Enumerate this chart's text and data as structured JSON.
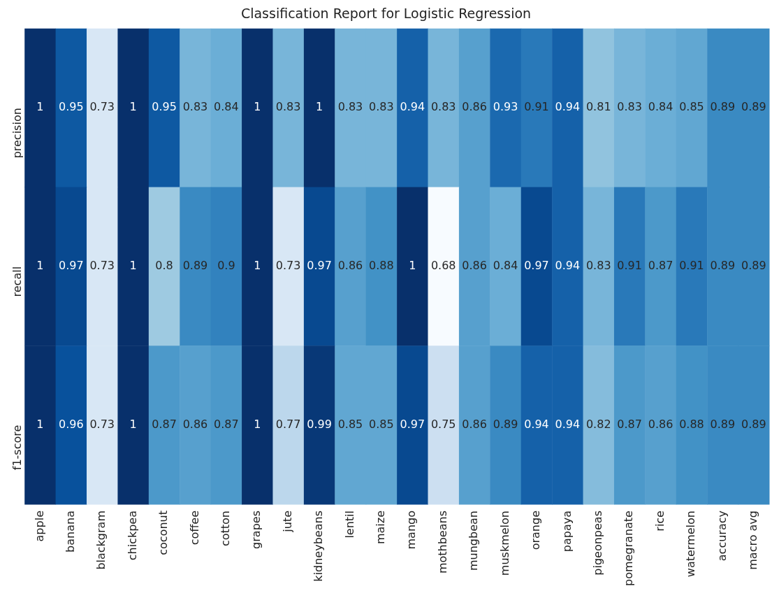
{
  "chart_data": {
    "type": "heatmap",
    "title": "Classification Report for Logistic Regression",
    "categories": [
      "apple",
      "banana",
      "blackgram",
      "chickpea",
      "coconut",
      "coffee",
      "cotton",
      "grapes",
      "jute",
      "kidneybeans",
      "lentil",
      "maize",
      "mango",
      "mothbeans",
      "mungbean",
      "muskmelon",
      "orange",
      "papaya",
      "pigeonpeas",
      "pomegranate",
      "rice",
      "watermelon",
      "accuracy",
      "macro avg"
    ],
    "y_categories": [
      "precision",
      "recall",
      "f1-score"
    ],
    "cells": [
      [
        1,
        0.95,
        0.73,
        1,
        0.95,
        0.83,
        0.84,
        1,
        0.83,
        1,
        0.83,
        0.83,
        0.94,
        0.83,
        0.86,
        0.93,
        0.91,
        0.94,
        0.81,
        0.83,
        0.84,
        0.85,
        0.89,
        0.89
      ],
      [
        1,
        0.97,
        0.73,
        1,
        0.8,
        0.89,
        0.9,
        1,
        0.73,
        0.97,
        0.86,
        0.88,
        1,
        0.68,
        0.86,
        0.84,
        0.97,
        0.94,
        0.83,
        0.91,
        0.87,
        0.91,
        0.89,
        0.89
      ],
      [
        1,
        0.96,
        0.73,
        1,
        0.87,
        0.86,
        0.87,
        1,
        0.77,
        0.99,
        0.85,
        0.85,
        0.97,
        0.75,
        0.86,
        0.89,
        0.94,
        0.94,
        0.82,
        0.87,
        0.86,
        0.88,
        0.89,
        0.89
      ]
    ],
    "data_labels": true,
    "grid": false,
    "legend": false
  }
}
